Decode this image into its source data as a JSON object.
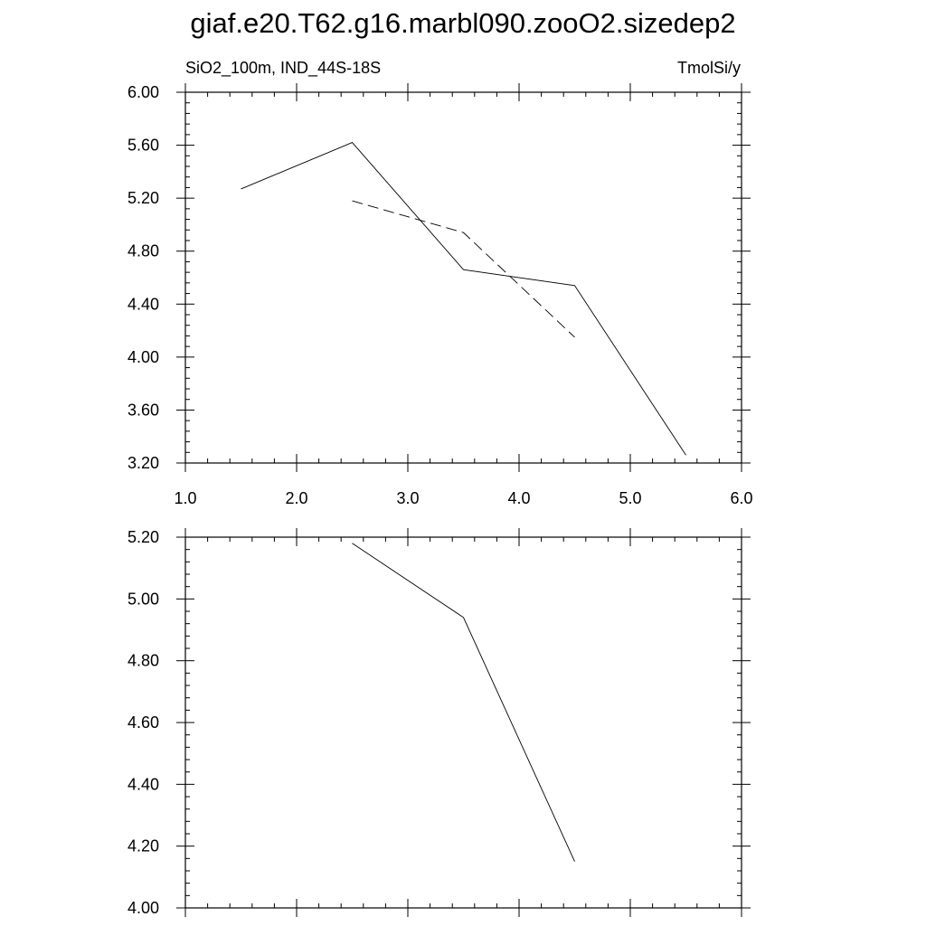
{
  "page": {
    "title": "giaf.e20.T62.g16.marbl090.zooO2.sizedep2",
    "left_subtitle": "SiO2_100m, IND_44S-18S",
    "right_subtitle": "TmolSi/y"
  },
  "chart_data": [
    {
      "type": "line",
      "title": "",
      "xlim": [
        1.0,
        6.0
      ],
      "ylim": [
        3.2,
        6.0
      ],
      "x_ticks": [
        "1.0",
        "2.0",
        "3.0",
        "4.0",
        "5.0",
        "6.0"
      ],
      "y_ticks": [
        "3.20",
        "3.60",
        "4.00",
        "4.40",
        "4.80",
        "5.20",
        "5.60",
        "6.00"
      ],
      "grid": false,
      "series": [
        {
          "style": "solid",
          "x": [
            1.5,
            2.5,
            3.5,
            4.5,
            5.5
          ],
          "y": [
            5.27,
            5.62,
            4.66,
            4.54,
            3.26
          ]
        },
        {
          "style": "dashed",
          "x": [
            2.5,
            3.5,
            4.5
          ],
          "y": [
            5.18,
            4.94,
            4.15
          ]
        }
      ]
    },
    {
      "type": "line",
      "title": "",
      "xlim": [
        1.0,
        6.0
      ],
      "ylim": [
        4.0,
        5.2
      ],
      "x_ticks": [],
      "y_ticks": [
        "4.00",
        "4.20",
        "4.40",
        "4.60",
        "4.80",
        "5.00",
        "5.20"
      ],
      "grid": false,
      "series": [
        {
          "style": "solid",
          "x": [
            2.5,
            3.5,
            4.5
          ],
          "y": [
            5.18,
            4.94,
            4.15
          ]
        }
      ]
    }
  ]
}
